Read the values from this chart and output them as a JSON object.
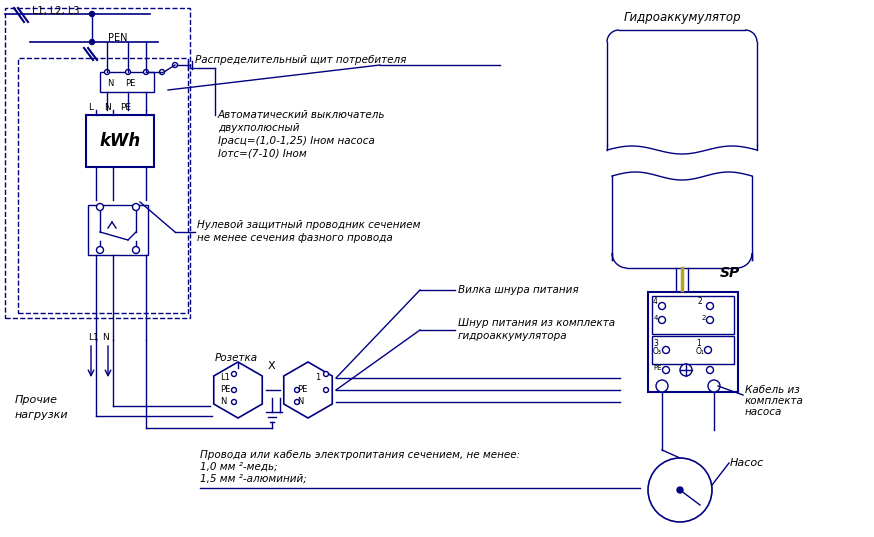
{
  "bg_color": "#ffffff",
  "lc": "#000080",
  "tc": "#000000",
  "gold": "#b8a020",
  "labels": {
    "L1L2L3": "L1, L2, L3",
    "PEN": "PEN",
    "kWh": "kWh",
    "L": "L",
    "N_kWh": "N",
    "PE_kWh": "PE",
    "L1_bot": "L1",
    "N_bot": "N",
    "prochie_1": "Прочие",
    "prochie_2": "нагрузки",
    "rasp": "Распределительный щит потребителя",
    "avt1": "Автоматический выключатель",
    "avt2": "двухполюсный",
    "avt3": "Iрасц=(1,0-1,25) Iном насоса",
    "avt4": "Iотс=(7-10) Iном",
    "nul1": "Нулевой защитный проводник сечением",
    "nul2": "не менее сечения фазного провода",
    "vilka": "Вилка шнура питания",
    "rozetka": "Розетка",
    "shnur1": "Шнур питания из комплекта",
    "shnur2": "гидроаккумулятора",
    "prov1": "Провода или кабель электропитания сечением, не менее:",
    "prov2": "1,0 мм ²-медь;",
    "prov3": "1,5 мм ²-алюминий;",
    "gidro": "Гидроаккумулятор",
    "SP": "SP",
    "kab1": "Кабель из",
    "kab2": "комплекта",
    "kab3": "насоса",
    "nasos": "Насос",
    "X": "X",
    "N_cb": "N",
    "PE_cb": "PE",
    "num4a": "4",
    "num2a": "2",
    "num4b": "4",
    "num2b": "2",
    "num3": "3",
    "O3": "O₃",
    "num1": "1",
    "O1": "O₁",
    "PE_sp": "PE"
  }
}
